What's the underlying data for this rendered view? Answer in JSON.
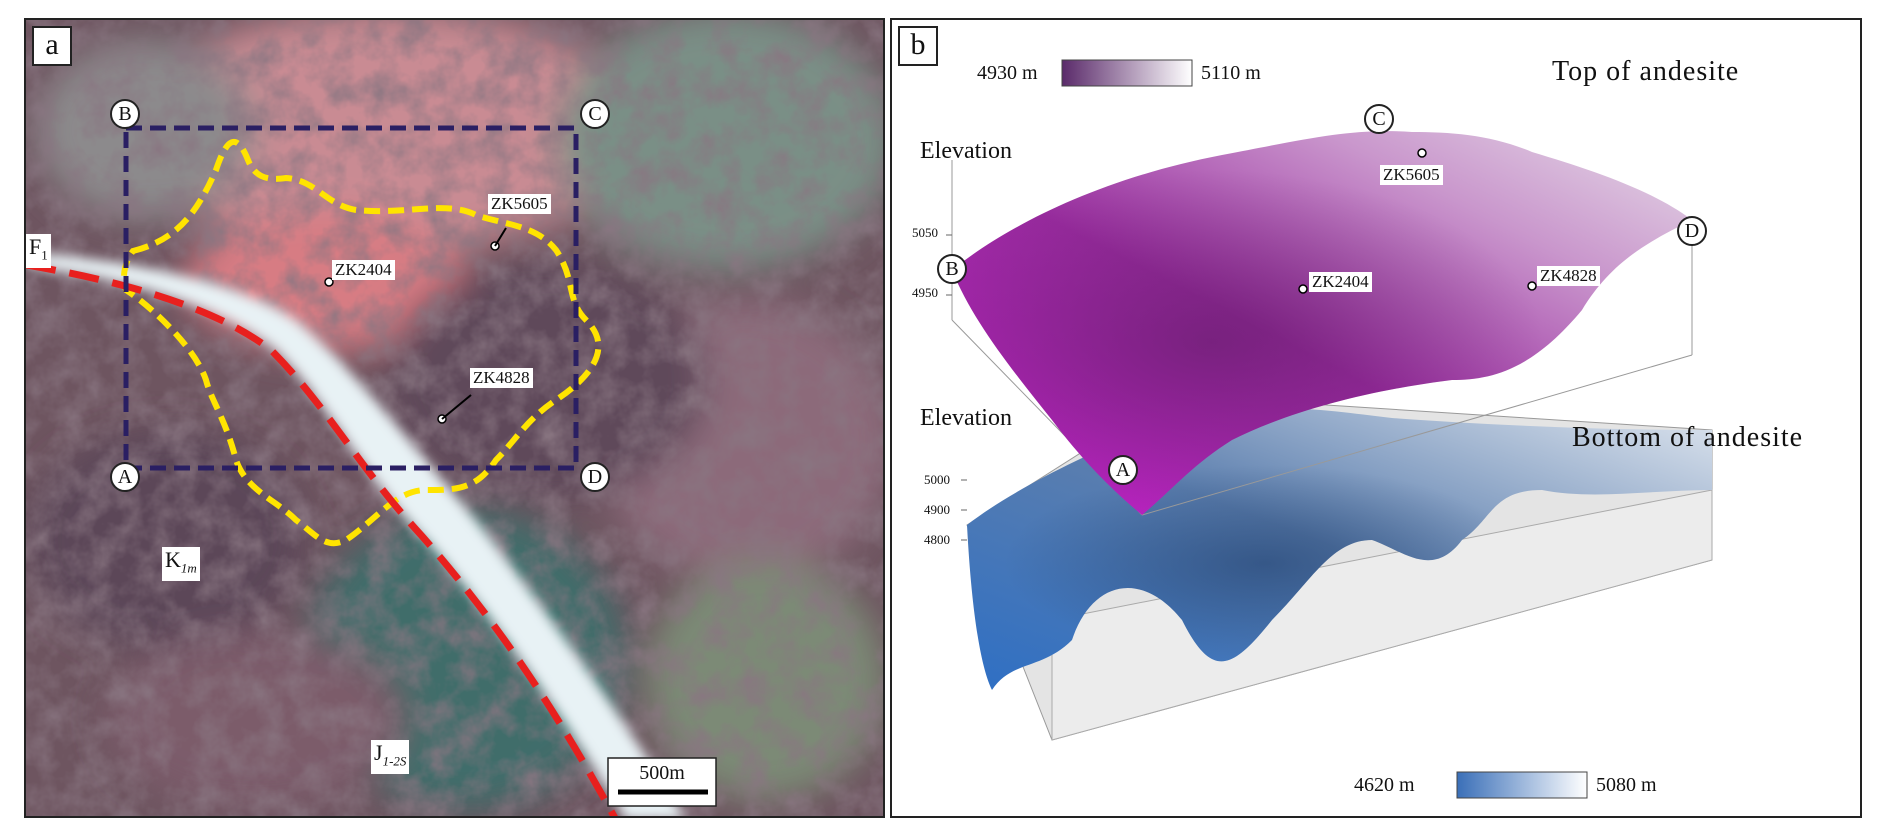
{
  "panel_a": {
    "label": "a",
    "corners": [
      "A",
      "B",
      "C",
      "D"
    ],
    "boreholes": [
      "ZK5605",
      "ZK2404",
      "ZK4828"
    ],
    "fault_label_main": "F",
    "fault_label_sub": "1",
    "units": [
      {
        "main": "K",
        "sub": "1m"
      },
      {
        "main": "J",
        "sub": "1-2S"
      }
    ],
    "scale_bar": "500m",
    "colors": {
      "frame": "#2a1f63",
      "outline": "#ffe400",
      "fault": "#e8201e"
    }
  },
  "panel_b": {
    "label": "b",
    "title_top": "Top of andesite",
    "title_bottom": "Bottom of andesite",
    "elevation_label": "Elevation",
    "top_ticks": [
      "5050",
      "4950"
    ],
    "bottom_ticks": [
      "5000",
      "4900",
      "4800"
    ],
    "legend_top": {
      "min": "4930 m",
      "max": "5110 m",
      "color_min": "#5a2a6a",
      "color_max": "#ffffff"
    },
    "legend_bottom": {
      "min": "4620 m",
      "max": "5080 m",
      "color_min": "#3a6fb8",
      "color_max": "#ffffff"
    },
    "corners": [
      "A",
      "B",
      "C",
      "D"
    ],
    "boreholes": [
      "ZK5605",
      "ZK2404",
      "ZK4828"
    ]
  }
}
